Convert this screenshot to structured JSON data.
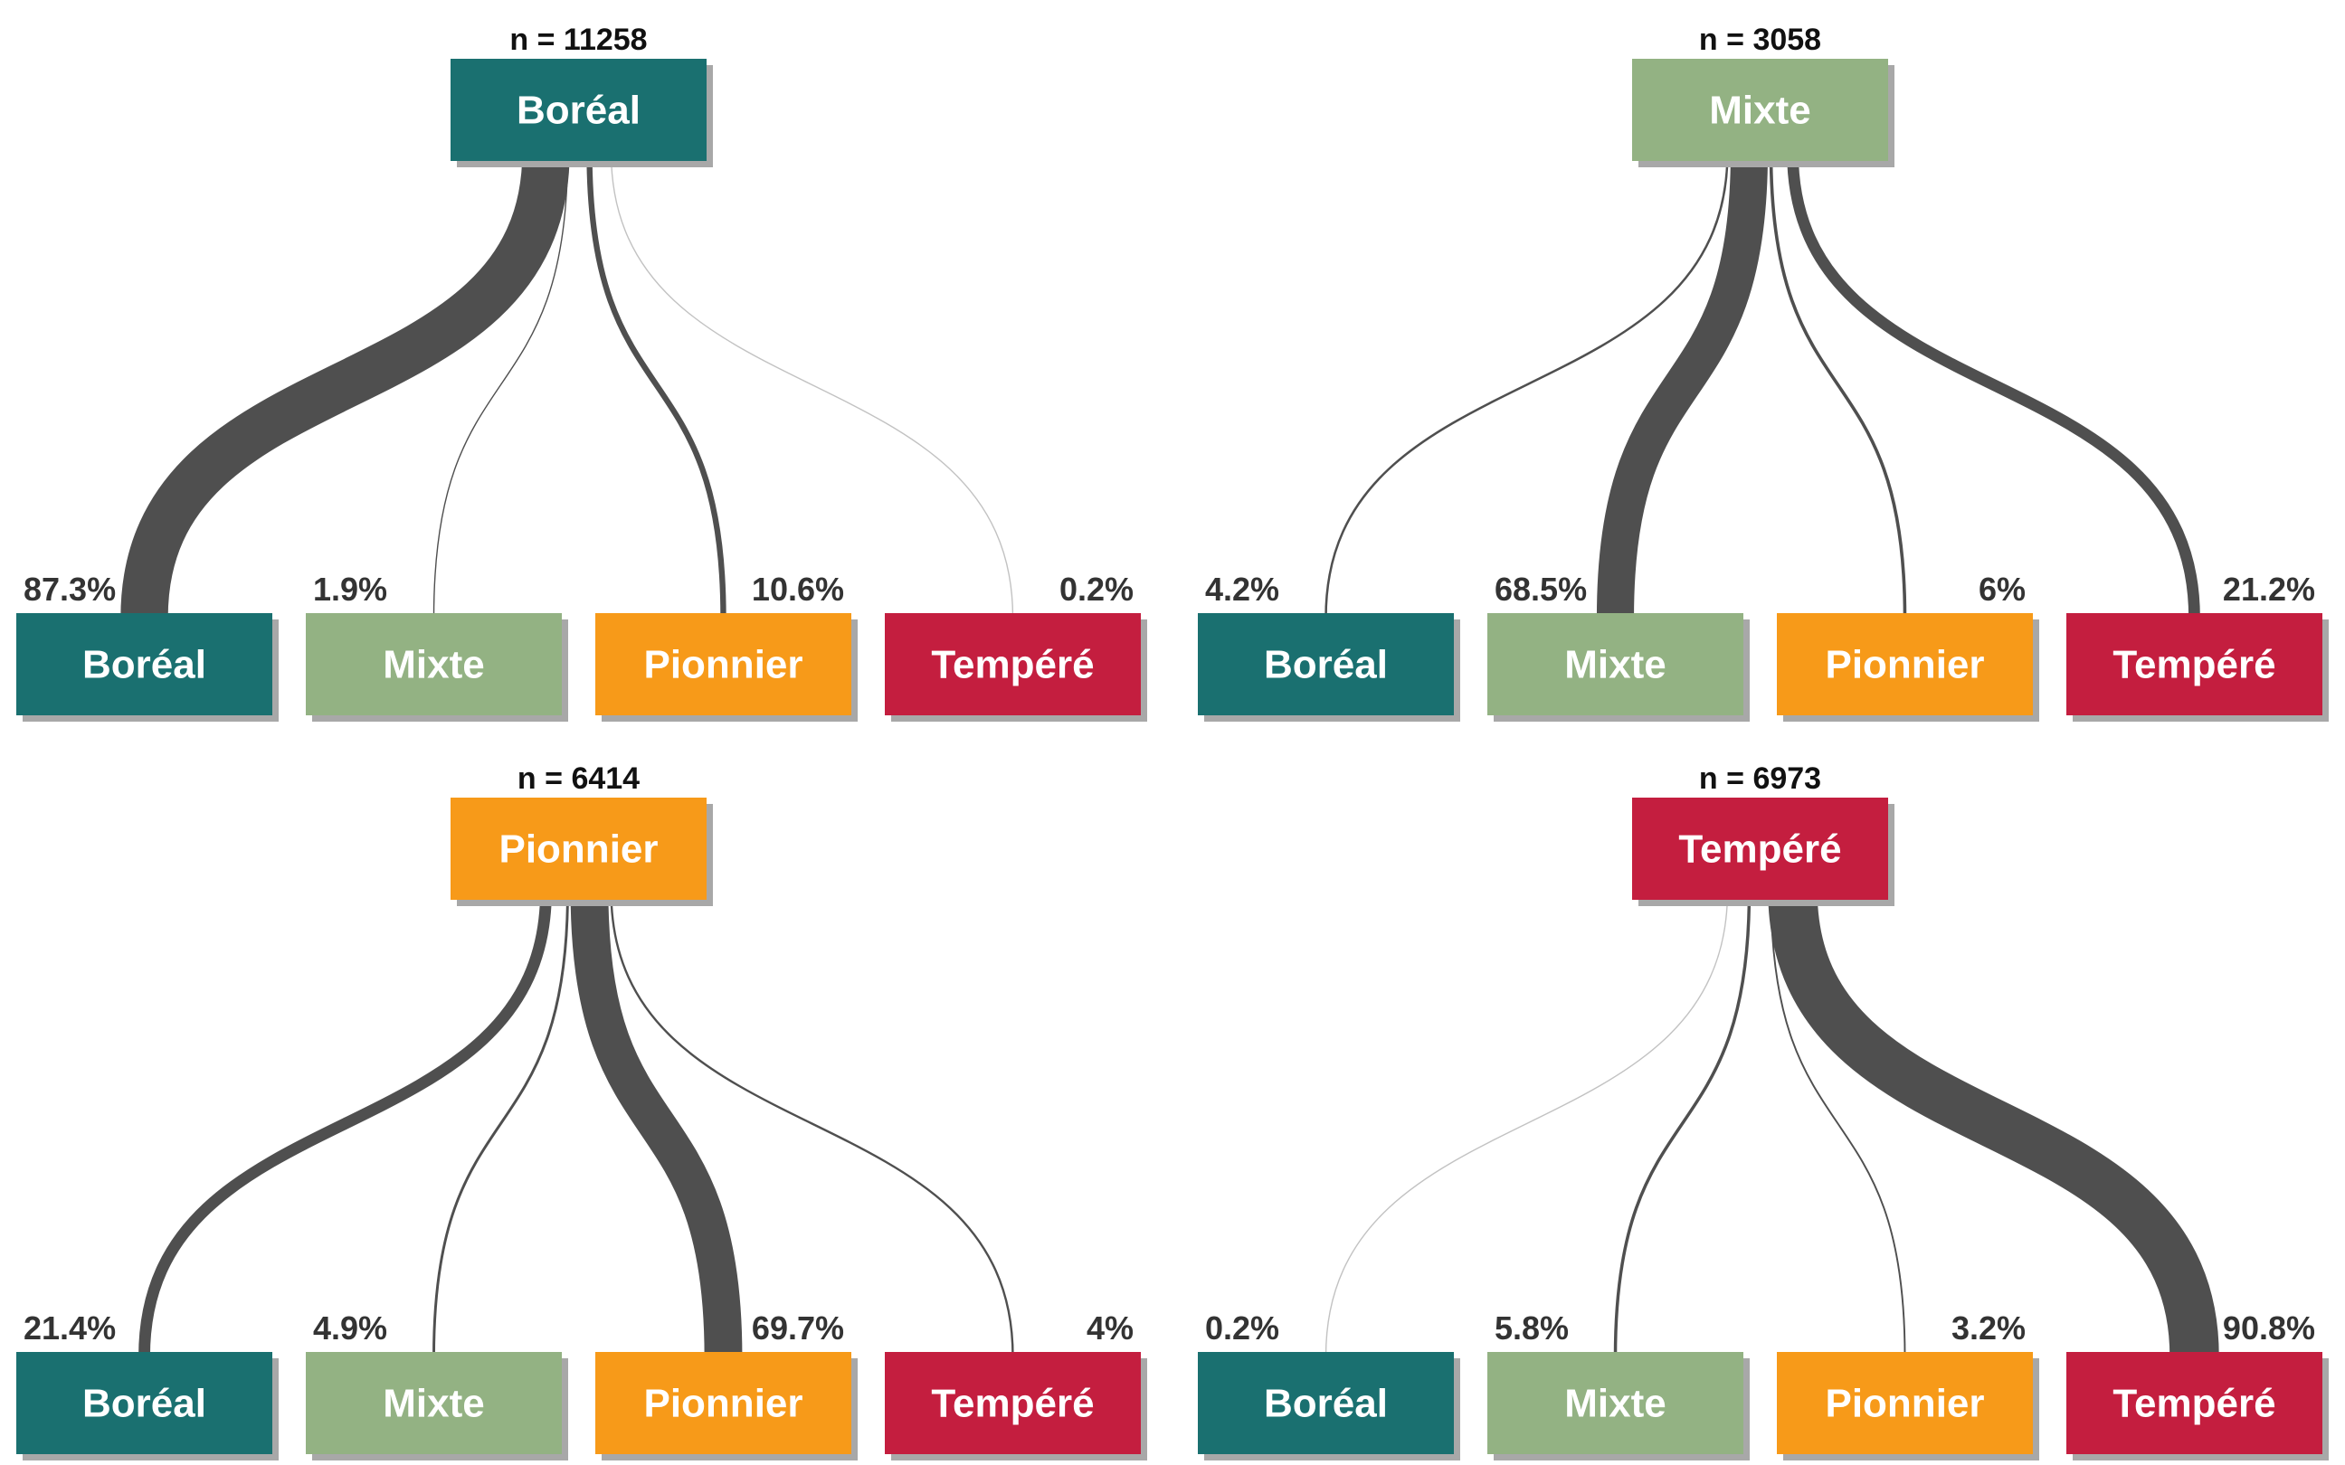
{
  "colors": {
    "Boréal": "#1a7070",
    "Mixte": "#93b283",
    "Pionnier": "#f79a19",
    "Tempéré": "#c41e3f",
    "flow": "#4f4f4f",
    "shadow": "#a8a8a8"
  },
  "chart_data": [
    {
      "type": "flow",
      "source": "Boréal",
      "n_label": "n = 11258",
      "n": 11258,
      "targets": [
        "Boréal",
        "Mixte",
        "Pionnier",
        "Tempéré"
      ],
      "pct_labels": [
        "87.3%",
        "1.9%",
        "10.6%",
        "0.2%"
      ],
      "values": [
        87.3,
        1.9,
        10.6,
        0.2
      ]
    },
    {
      "type": "flow",
      "source": "Mixte",
      "n_label": "n = 3058",
      "n": 3058,
      "targets": [
        "Boréal",
        "Mixte",
        "Pionnier",
        "Tempéré"
      ],
      "pct_labels": [
        "4.2%",
        "68.5%",
        "6%",
        "21.2%"
      ],
      "values": [
        4.2,
        68.5,
        6,
        21.2
      ]
    },
    {
      "type": "flow",
      "source": "Pionnier",
      "n_label": "n = 6414",
      "n": 6414,
      "targets": [
        "Boréal",
        "Mixte",
        "Pionnier",
        "Tempéré"
      ],
      "pct_labels": [
        "21.4%",
        "4.9%",
        "69.7%",
        "4%"
      ],
      "values": [
        21.4,
        4.9,
        69.7,
        4
      ]
    },
    {
      "type": "flow",
      "source": "Tempéré",
      "n_label": "n = 6973",
      "n": 6973,
      "targets": [
        "Boréal",
        "Mixte",
        "Pionnier",
        "Tempéré"
      ],
      "pct_labels": [
        "0.2%",
        "5.8%",
        "3.2%",
        "90.8%"
      ],
      "values": [
        0.2,
        5.8,
        3.2,
        90.8
      ]
    }
  ]
}
